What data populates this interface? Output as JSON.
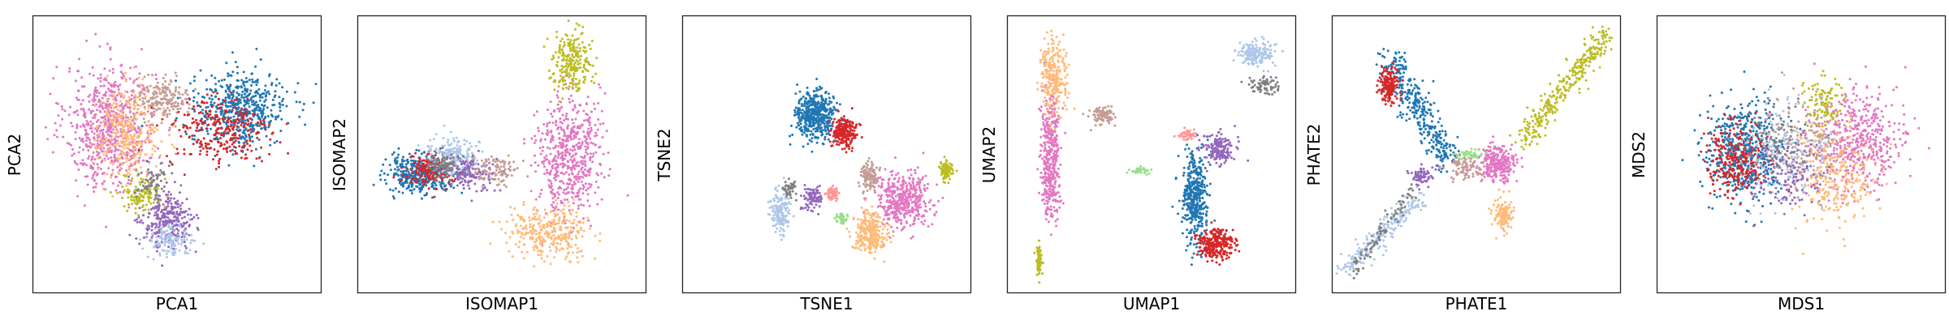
{
  "colors": {
    "tab10": [
      "#1f77b4",
      "#d62728",
      "#bcbd22",
      "#e377c2",
      "#ffbb78",
      "#aec7e8",
      "#c49c94",
      "#9467bd",
      "#98df8a",
      "#ff9896",
      "#7f7f7f",
      "#17becf"
    ]
  },
  "chart_data": [
    {
      "type": "scatter",
      "xlabel": "PCA1",
      "ylabel": "PCA2",
      "ticks": "hidden",
      "clusters": [
        {
          "color": "#e377c2",
          "center": [
            0.27,
            0.6
          ],
          "spread": [
            0.14,
            0.2
          ],
          "count": 700
        },
        {
          "color": "#ffbb78",
          "center": [
            0.33,
            0.58
          ],
          "spread": [
            0.1,
            0.15
          ],
          "count": 320
        },
        {
          "color": "#c49c94",
          "center": [
            0.45,
            0.7
          ],
          "spread": [
            0.08,
            0.07
          ],
          "count": 180
        },
        {
          "color": "#1f77b4",
          "center": [
            0.72,
            0.66
          ],
          "spread": [
            0.15,
            0.12
          ],
          "count": 550
        },
        {
          "color": "#d62728",
          "center": [
            0.65,
            0.58
          ],
          "spread": [
            0.16,
            0.12
          ],
          "count": 280
        },
        {
          "color": "#9467bd",
          "center": [
            0.47,
            0.26
          ],
          "spread": [
            0.08,
            0.09
          ],
          "count": 300
        },
        {
          "color": "#aec7e8",
          "center": [
            0.47,
            0.19
          ],
          "spread": [
            0.07,
            0.05
          ],
          "count": 120
        },
        {
          "color": "#bcbd22",
          "center": [
            0.38,
            0.36
          ],
          "spread": [
            0.06,
            0.06
          ],
          "count": 110
        },
        {
          "color": "#7f7f7f",
          "center": [
            0.42,
            0.4
          ],
          "spread": [
            0.05,
            0.06
          ],
          "count": 60
        }
      ]
    },
    {
      "type": "scatter",
      "xlabel": "ISOMAP1",
      "ylabel": "ISOMAP2",
      "ticks": "hidden",
      "clusters": [
        {
          "color": "#e377c2",
          "center": [
            0.73,
            0.5
          ],
          "spread": [
            0.1,
            0.2
          ],
          "count": 550
        },
        {
          "color": "#ffbb78",
          "center": [
            0.67,
            0.22
          ],
          "spread": [
            0.13,
            0.08
          ],
          "count": 320
        },
        {
          "color": "#bcbd22",
          "center": [
            0.74,
            0.84
          ],
          "spread": [
            0.06,
            0.1
          ],
          "count": 240
        },
        {
          "color": "#1f77b4",
          "center": [
            0.22,
            0.43
          ],
          "spread": [
            0.11,
            0.06
          ],
          "count": 400
        },
        {
          "color": "#d62728",
          "center": [
            0.25,
            0.44
          ],
          "spread": [
            0.08,
            0.05
          ],
          "count": 160
        },
        {
          "color": "#aec7e8",
          "center": [
            0.33,
            0.5
          ],
          "spread": [
            0.08,
            0.06
          ],
          "count": 180
        },
        {
          "color": "#9467bd",
          "center": [
            0.4,
            0.43
          ],
          "spread": [
            0.08,
            0.06
          ],
          "count": 140
        },
        {
          "color": "#c49c94",
          "center": [
            0.48,
            0.44
          ],
          "spread": [
            0.07,
            0.05
          ],
          "count": 100
        },
        {
          "color": "#7f7f7f",
          "center": [
            0.3,
            0.46
          ],
          "spread": [
            0.06,
            0.04
          ],
          "count": 80
        }
      ]
    },
    {
      "type": "scatter",
      "xlabel": "TSNE1",
      "ylabel": "TSNE2",
      "ticks": "hidden",
      "clusters": [
        {
          "color": "#1f77b4",
          "center": [
            0.46,
            0.64
          ],
          "spread": [
            0.06,
            0.08
          ],
          "count": 450
        },
        {
          "color": "#d62728",
          "center": [
            0.56,
            0.58
          ],
          "spread": [
            0.04,
            0.05
          ],
          "count": 220
        },
        {
          "color": "#e377c2",
          "center": [
            0.76,
            0.33
          ],
          "spread": [
            0.09,
            0.09
          ],
          "count": 420
        },
        {
          "color": "#ffbb78",
          "center": [
            0.65,
            0.22
          ],
          "spread": [
            0.05,
            0.07
          ],
          "count": 260
        },
        {
          "color": "#aec7e8",
          "center": [
            0.34,
            0.29
          ],
          "spread": [
            0.03,
            0.07
          ],
          "count": 160
        },
        {
          "color": "#bcbd22",
          "center": [
            0.91,
            0.44
          ],
          "spread": [
            0.02,
            0.03
          ],
          "count": 120
        },
        {
          "color": "#c49c94",
          "center": [
            0.65,
            0.42
          ],
          "spread": [
            0.03,
            0.04
          ],
          "count": 110
        },
        {
          "color": "#9467bd",
          "center": [
            0.45,
            0.34
          ],
          "spread": [
            0.03,
            0.04
          ],
          "count": 90
        },
        {
          "color": "#ff9896",
          "center": [
            0.52,
            0.36
          ],
          "spread": [
            0.02,
            0.02
          ],
          "count": 60
        },
        {
          "color": "#98df8a",
          "center": [
            0.55,
            0.27
          ],
          "spread": [
            0.02,
            0.02
          ],
          "count": 40
        },
        {
          "color": "#7f7f7f",
          "center": [
            0.37,
            0.38
          ],
          "spread": [
            0.02,
            0.03
          ],
          "count": 40
        }
      ]
    },
    {
      "type": "scatter",
      "xlabel": "UMAP1",
      "ylabel": "UMAP2",
      "ticks": "hidden",
      "clusters": [
        {
          "color": "#e377c2",
          "center": [
            0.15,
            0.5
          ],
          "spread": [
            0.03,
            0.2
          ],
          "count": 420
        },
        {
          "color": "#ffbb78",
          "center": [
            0.16,
            0.78
          ],
          "spread": [
            0.04,
            0.12
          ],
          "count": 260
        },
        {
          "color": "#bcbd22",
          "center": [
            0.11,
            0.12
          ],
          "spread": [
            0.01,
            0.05
          ],
          "count": 80
        },
        {
          "color": "#c49c94",
          "center": [
            0.33,
            0.64
          ],
          "spread": [
            0.04,
            0.03
          ],
          "count": 90
        },
        {
          "color": "#1f77b4",
          "center": [
            0.65,
            0.34
          ],
          "spread": [
            0.04,
            0.15
          ],
          "count": 420
        },
        {
          "color": "#d62728",
          "center": [
            0.72,
            0.18
          ],
          "spread": [
            0.06,
            0.05
          ],
          "count": 280
        },
        {
          "color": "#9467bd",
          "center": [
            0.73,
            0.52
          ],
          "spread": [
            0.05,
            0.05
          ],
          "count": 160
        },
        {
          "color": "#aec7e8",
          "center": [
            0.86,
            0.86
          ],
          "spread": [
            0.06,
            0.04
          ],
          "count": 160
        },
        {
          "color": "#7f7f7f",
          "center": [
            0.89,
            0.75
          ],
          "spread": [
            0.05,
            0.03
          ],
          "count": 70
        },
        {
          "color": "#ff9896",
          "center": [
            0.62,
            0.57
          ],
          "spread": [
            0.03,
            0.02
          ],
          "count": 50
        },
        {
          "color": "#98df8a",
          "center": [
            0.46,
            0.44
          ],
          "spread": [
            0.03,
            0.01
          ],
          "count": 40
        }
      ]
    },
    {
      "type": "scatter",
      "xlabel": "PHATE1",
      "ylabel": "PHATE2",
      "ticks": "hidden",
      "clusters": [
        {
          "shape": "line",
          "color": "#bcbd22",
          "from": [
            0.66,
            0.55
          ],
          "to": [
            0.95,
            0.93
          ],
          "width": 0.02,
          "count": 320
        },
        {
          "shape": "line",
          "color": "#aec7e8",
          "from": [
            0.05,
            0.08
          ],
          "to": [
            0.3,
            0.35
          ],
          "width": 0.02,
          "count": 220
        },
        {
          "shape": "line",
          "color": "#7f7f7f",
          "from": [
            0.07,
            0.08
          ],
          "to": [
            0.3,
            0.4
          ],
          "width": 0.012,
          "count": 90
        },
        {
          "shape": "line",
          "color": "#1f77b4",
          "from": [
            0.2,
            0.85
          ],
          "to": [
            0.4,
            0.47
          ],
          "width": 0.025,
          "count": 360
        },
        {
          "color": "#d62728",
          "center": [
            0.2,
            0.75
          ],
          "spread": [
            0.03,
            0.06
          ],
          "count": 170
        },
        {
          "color": "#e377c2",
          "center": [
            0.57,
            0.47
          ],
          "spread": [
            0.06,
            0.06
          ],
          "count": 260
        },
        {
          "color": "#ffbb78",
          "center": [
            0.59,
            0.28
          ],
          "spread": [
            0.03,
            0.06
          ],
          "count": 130
        },
        {
          "color": "#c49c94",
          "center": [
            0.46,
            0.45
          ],
          "spread": [
            0.05,
            0.04
          ],
          "count": 90
        },
        {
          "color": "#9467bd",
          "center": [
            0.31,
            0.42
          ],
          "spread": [
            0.04,
            0.03
          ],
          "count": 70
        },
        {
          "color": "#98df8a",
          "center": [
            0.48,
            0.5
          ],
          "spread": [
            0.04,
            0.02
          ],
          "count": 40
        }
      ]
    },
    {
      "type": "scatter",
      "xlabel": "MDS1",
      "ylabel": "MDS2",
      "ticks": "hidden",
      "clusters": [
        {
          "color": "#1f77b4",
          "center": [
            0.3,
            0.51
          ],
          "spread": [
            0.12,
            0.16
          ],
          "count": 550
        },
        {
          "color": "#d62728",
          "center": [
            0.27,
            0.48
          ],
          "spread": [
            0.1,
            0.13
          ],
          "count": 280
        },
        {
          "color": "#e377c2",
          "center": [
            0.7,
            0.55
          ],
          "spread": [
            0.14,
            0.16
          ],
          "count": 500
        },
        {
          "color": "#ffbb78",
          "center": [
            0.62,
            0.42
          ],
          "spread": [
            0.12,
            0.15
          ],
          "count": 300
        },
        {
          "color": "#aec7e8",
          "center": [
            0.45,
            0.5
          ],
          "spread": [
            0.14,
            0.16
          ],
          "count": 180
        },
        {
          "color": "#9467bd",
          "center": [
            0.45,
            0.42
          ],
          "spread": [
            0.12,
            0.12
          ],
          "count": 140
        },
        {
          "color": "#c49c94",
          "center": [
            0.5,
            0.55
          ],
          "spread": [
            0.12,
            0.14
          ],
          "count": 120
        },
        {
          "color": "#bcbd22",
          "center": [
            0.58,
            0.68
          ],
          "spread": [
            0.06,
            0.1
          ],
          "count": 100
        },
        {
          "color": "#7f7f7f",
          "center": [
            0.4,
            0.55
          ],
          "spread": [
            0.1,
            0.12
          ],
          "count": 70
        }
      ]
    }
  ]
}
